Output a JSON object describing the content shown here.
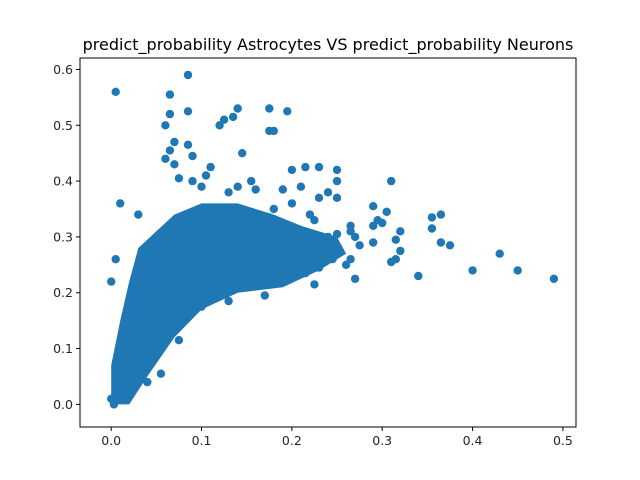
{
  "chart_data": {
    "type": "scatter",
    "title": "predict_probability Astrocytes VS predict_probability Neurons",
    "xlabel": "",
    "ylabel": "",
    "xlim": [
      -0.0345,
      0.5145
    ],
    "ylim": [
      -0.0405,
      0.6205
    ],
    "xticks": [
      0.0,
      0.1,
      0.2,
      0.3,
      0.4,
      0.5
    ],
    "xtick_labels": [
      "0.0",
      "0.1",
      "0.2",
      "0.3",
      "0.4",
      "0.5"
    ],
    "yticks": [
      0.0,
      0.1,
      0.2,
      0.3,
      0.4,
      0.5,
      0.6
    ],
    "ytick_labels": [
      "0.0",
      "0.1",
      "0.2",
      "0.3",
      "0.4",
      "0.5",
      "0.6"
    ],
    "grid": false,
    "marker_color": "#1f77b4",
    "series": [
      {
        "points": [
          [
            0.005,
            0.56
          ],
          [
            0.085,
            0.59
          ],
          [
            0.065,
            0.555
          ],
          [
            0.085,
            0.525
          ],
          [
            0.065,
            0.52
          ],
          [
            0.06,
            0.5
          ],
          [
            0.14,
            0.53
          ],
          [
            0.175,
            0.53
          ],
          [
            0.195,
            0.525
          ],
          [
            0.125,
            0.51
          ],
          [
            0.12,
            0.5
          ],
          [
            0.135,
            0.515
          ],
          [
            0.18,
            0.49
          ],
          [
            0.175,
            0.49
          ],
          [
            0.07,
            0.47
          ],
          [
            0.065,
            0.455
          ],
          [
            0.085,
            0.465
          ],
          [
            0.09,
            0.445
          ],
          [
            0.06,
            0.44
          ],
          [
            0.145,
            0.45
          ],
          [
            0.07,
            0.43
          ],
          [
            0.11,
            0.425
          ],
          [
            0.23,
            0.425
          ],
          [
            0.215,
            0.425
          ],
          [
            0.2,
            0.42
          ],
          [
            0.25,
            0.42
          ],
          [
            0.25,
            0.4
          ],
          [
            0.31,
            0.4
          ],
          [
            0.29,
            0.355
          ],
          [
            0.305,
            0.345
          ],
          [
            0.295,
            0.33
          ],
          [
            0.3,
            0.325
          ],
          [
            0.29,
            0.32
          ],
          [
            0.265,
            0.32
          ],
          [
            0.265,
            0.31
          ],
          [
            0.25,
            0.305
          ],
          [
            0.24,
            0.3
          ],
          [
            0.27,
            0.3
          ],
          [
            0.32,
            0.31
          ],
          [
            0.315,
            0.295
          ],
          [
            0.29,
            0.29
          ],
          [
            0.275,
            0.285
          ],
          [
            0.32,
            0.275
          ],
          [
            0.355,
            0.335
          ],
          [
            0.365,
            0.34
          ],
          [
            0.355,
            0.315
          ],
          [
            0.365,
            0.29
          ],
          [
            0.375,
            0.285
          ],
          [
            0.31,
            0.255
          ],
          [
            0.315,
            0.26
          ],
          [
            0.34,
            0.23
          ],
          [
            0.4,
            0.24
          ],
          [
            0.43,
            0.27
          ],
          [
            0.45,
            0.24
          ],
          [
            0.49,
            0.225
          ],
          [
            0.265,
            0.26
          ],
          [
            0.26,
            0.25
          ],
          [
            0.27,
            0.225
          ],
          [
            0.245,
            0.26
          ],
          [
            0.23,
            0.245
          ],
          [
            0.225,
            0.215
          ],
          [
            0.215,
            0.235
          ],
          [
            0.2,
            0.24
          ],
          [
            0.17,
            0.195
          ],
          [
            0.13,
            0.185
          ],
          [
            0.1,
            0.175
          ],
          [
            0.075,
            0.115
          ],
          [
            0.055,
            0.055
          ],
          [
            0.04,
            0.04
          ],
          [
            0.01,
            0.36
          ],
          [
            0.035,
            0.22
          ],
          [
            0.0,
            0.22
          ],
          [
            0.005,
            0.26
          ],
          [
            0.03,
            0.34
          ],
          [
            0.175,
            0.335
          ],
          [
            0.16,
            0.34
          ],
          [
            0.18,
            0.35
          ],
          [
            0.22,
            0.34
          ],
          [
            0.225,
            0.33
          ],
          [
            0.2,
            0.36
          ],
          [
            0.14,
            0.39
          ],
          [
            0.1,
            0.39
          ],
          [
            0.13,
            0.38
          ],
          [
            0.16,
            0.385
          ],
          [
            0.155,
            0.4
          ],
          [
            0.105,
            0.41
          ],
          [
            0.09,
            0.4
          ],
          [
            0.075,
            0.405
          ],
          [
            0.19,
            0.385
          ],
          [
            0.21,
            0.39
          ],
          [
            0.24,
            0.38
          ],
          [
            0.23,
            0.37
          ],
          [
            0.25,
            0.37
          ],
          [
            0.2,
            0.305
          ],
          [
            0.22,
            0.3
          ],
          [
            0.19,
            0.3
          ],
          [
            0.18,
            0.31
          ],
          [
            0.15,
            0.3
          ],
          [
            0.14,
            0.29
          ],
          [
            0.12,
            0.27
          ],
          [
            0.1,
            0.28
          ],
          [
            0.09,
            0.26
          ],
          [
            0.08,
            0.27
          ],
          [
            0.07,
            0.25
          ],
          [
            0.06,
            0.24
          ],
          [
            0.05,
            0.23
          ],
          [
            0.045,
            0.25
          ],
          [
            0.04,
            0.22
          ],
          [
            0.035,
            0.2
          ],
          [
            0.03,
            0.18
          ],
          [
            0.025,
            0.16
          ],
          [
            0.02,
            0.15
          ],
          [
            0.02,
            0.13
          ],
          [
            0.015,
            0.12
          ],
          [
            0.015,
            0.1
          ],
          [
            0.01,
            0.08
          ],
          [
            0.01,
            0.06
          ],
          [
            0.005,
            0.04
          ],
          [
            0.005,
            0.02
          ],
          [
            0.0,
            0.01
          ],
          [
            0.003,
            0.0
          ]
        ]
      }
    ]
  }
}
